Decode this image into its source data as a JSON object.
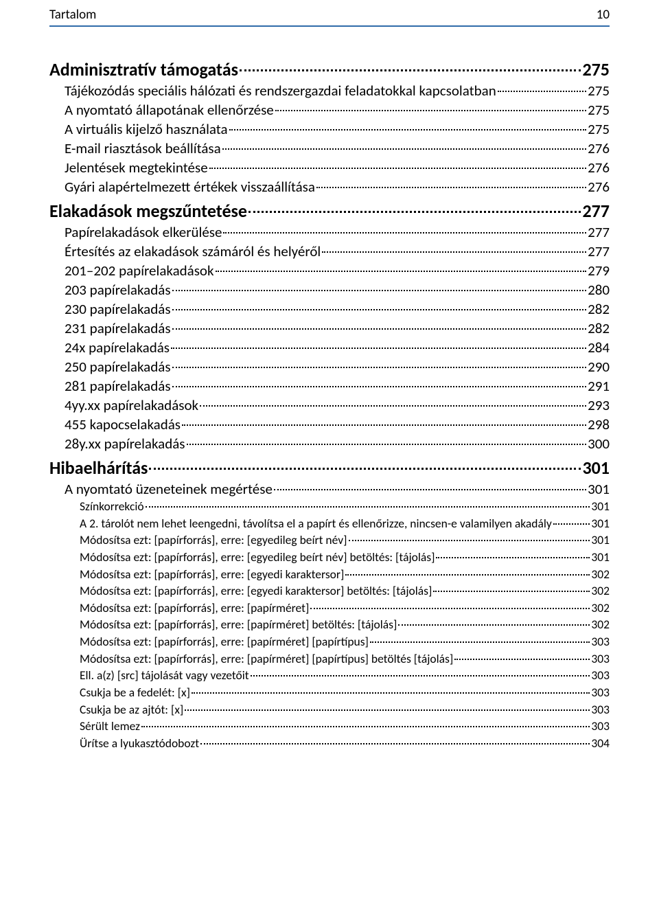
{
  "header": {
    "title": "Tartalom",
    "page_number": "10"
  },
  "colors": {
    "text": "#000000",
    "header_rule": "#2f6aa9",
    "background": "#ffffff"
  },
  "typography": {
    "font_family": "Calibri",
    "lvl1_size_pt": 20,
    "lvl2_size_pt": 16,
    "lvl3_size_pt": 13
  },
  "toc": [
    {
      "level": 1,
      "label": "Adminisztratív támogatás",
      "page": "275"
    },
    {
      "level": 2,
      "label": "Tájékozódás speciális hálózati és rendszergazdai feladatokkal kapcsolatban",
      "page": "275"
    },
    {
      "level": 2,
      "label": "A nyomtató állapotának ellenőrzése",
      "page": "275"
    },
    {
      "level": 2,
      "label": "A virtuális kijelző használata",
      "page": "275"
    },
    {
      "level": 2,
      "label": "E-mail riasztások beállítása",
      "page": "276"
    },
    {
      "level": 2,
      "label": "Jelentések megtekintése",
      "page": "276"
    },
    {
      "level": 2,
      "label": "Gyári alapértelmezett értékek visszaállítása",
      "page": "276"
    },
    {
      "level": 1,
      "label": "Elakadások megszűntetése",
      "page": "277"
    },
    {
      "level": 2,
      "label": "Papírelakadások elkerülése",
      "page": "277"
    },
    {
      "level": 2,
      "label": "Értesítés az elakadások számáról és helyéről",
      "page": "277"
    },
    {
      "level": 2,
      "label": "201–202 papírelakadások",
      "page": "279"
    },
    {
      "level": 2,
      "label": "203 papírelakadás",
      "page": "280"
    },
    {
      "level": 2,
      "label": "230 papírelakadás",
      "page": "282"
    },
    {
      "level": 2,
      "label": "231 papírelakadás",
      "page": "282"
    },
    {
      "level": 2,
      "label": "24x papírelakadás",
      "page": "284"
    },
    {
      "level": 2,
      "label": "250 papírelakadás",
      "page": "290"
    },
    {
      "level": 2,
      "label": "281 papírelakadás",
      "page": "291"
    },
    {
      "level": 2,
      "label": "4yy.xx papírelakadások",
      "page": "293"
    },
    {
      "level": 2,
      "label": "455 kapocselakadás",
      "page": "298"
    },
    {
      "level": 2,
      "label": "28y.xx papírelakadás",
      "page": "300"
    },
    {
      "level": 1,
      "label": "Hibaelhárítás",
      "page": "301"
    },
    {
      "level": 2,
      "label": "A nyomtató üzeneteinek megértése",
      "page": "301"
    },
    {
      "level": 3,
      "label": "Színkorrekció",
      "page": "301"
    },
    {
      "level": 3,
      "label": "A 2. tárolót nem lehet leengedni, távolítsa el a papírt és ellenőrizze, nincsen-e valamilyen akadály",
      "page": "301"
    },
    {
      "level": 3,
      "label": "Módosítsa ezt: [papírforrás], erre: [egyedileg beírt név]",
      "page": "301"
    },
    {
      "level": 3,
      "label": "Módosítsa ezt: [papírforrás], erre: [egyedileg beírt név] betöltés: [tájolás]",
      "page": "301"
    },
    {
      "level": 3,
      "label": "Módosítsa ezt: [papírforrás], erre: [egyedi karaktersor]",
      "page": "302"
    },
    {
      "level": 3,
      "label": "Módosítsa ezt: [papírforrás], erre: [egyedi karaktersor] betöltés: [tájolás]",
      "page": "302"
    },
    {
      "level": 3,
      "label": "Módosítsa ezt: [papírforrás], erre: [papírméret]",
      "page": "302"
    },
    {
      "level": 3,
      "label": "Módosítsa ezt: [papírforrás], erre: [papírméret] betöltés: [tájolás]",
      "page": "302"
    },
    {
      "level": 3,
      "label": "Módosítsa ezt: [papírforrás], erre: [papírméret] [papírtípus]",
      "page": "303"
    },
    {
      "level": 3,
      "label": "Módosítsa ezt: [papírforrás], erre: [papírméret] [papírtípus] betöltés [tájolás]",
      "page": "303"
    },
    {
      "level": 3,
      "label": "Ell. a(z) [src] tájolását vagy vezetőit",
      "page": "303"
    },
    {
      "level": 3,
      "label": "Csukja be a fedelét: [x]",
      "page": "303"
    },
    {
      "level": 3,
      "label": "Csukja be az ajtót: [x]",
      "page": "303"
    },
    {
      "level": 3,
      "label": "Sérült lemez",
      "page": "303"
    },
    {
      "level": 3,
      "label": "Ürítse a lyukasztódobozt",
      "page": "304"
    }
  ]
}
